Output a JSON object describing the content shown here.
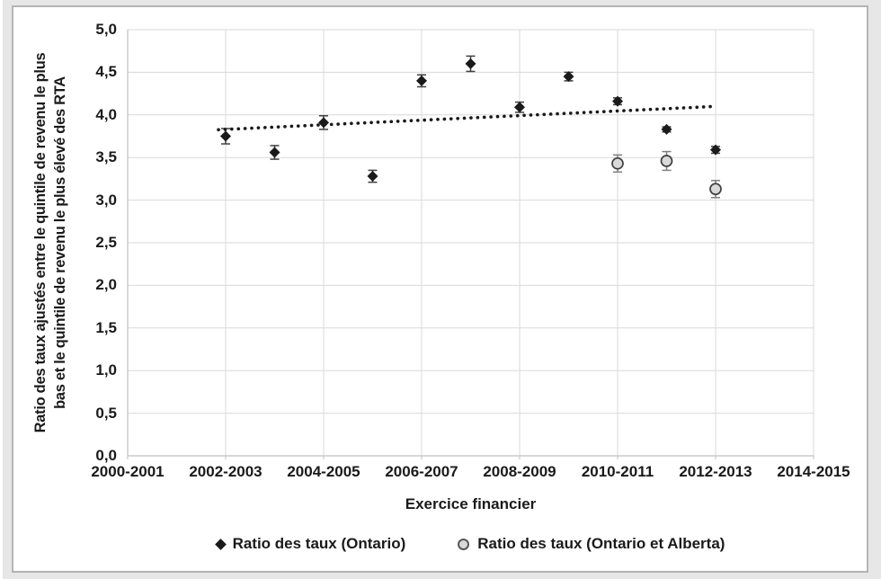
{
  "figure": {
    "background_color": "#e7e7e7",
    "panel_background": "#ffffff",
    "panel_border_color": "#b4b4b4",
    "text_color": "#1a1a1a"
  },
  "chart_data": {
    "type": "scatter",
    "title": "",
    "xlabel": "Exercice financier",
    "ylabel_line1": "Ratio des taux ajustés entre le quintile de revenu le plus",
    "ylabel_line2": "bas et le quintile de revenu le plus élevé des RTA",
    "ylim": [
      0,
      5
    ],
    "grid": true,
    "legend_position": "bottom",
    "colors": {
      "gridline": "#d9d9d9",
      "axis": "#bfbfbf",
      "text": "#1a1a1a"
    },
    "y_ticks": [
      {
        "value": 0.0,
        "label": "0,0"
      },
      {
        "value": 0.5,
        "label": "0,5"
      },
      {
        "value": 1.0,
        "label": "1,0"
      },
      {
        "value": 1.5,
        "label": "1,5"
      },
      {
        "value": 2.0,
        "label": "2,0"
      },
      {
        "value": 2.5,
        "label": "2,5"
      },
      {
        "value": 3.0,
        "label": "3,0"
      },
      {
        "value": 3.5,
        "label": "3,5"
      },
      {
        "value": 4.0,
        "label": "4,0"
      },
      {
        "value": 4.5,
        "label": "4,5"
      },
      {
        "value": 5.0,
        "label": "5,0"
      }
    ],
    "x_ticks": [
      {
        "year_index": 0,
        "label": "2000-2001"
      },
      {
        "year_index": 2,
        "label": "2002-2003"
      },
      {
        "year_index": 4,
        "label": "2004-2005"
      },
      {
        "year_index": 6,
        "label": "2006-2007"
      },
      {
        "year_index": 8,
        "label": "2008-2009"
      },
      {
        "year_index": 10,
        "label": "2010-2011"
      },
      {
        "year_index": 12,
        "label": "2012-2013"
      },
      {
        "year_index": 14,
        "label": "2014-2015"
      }
    ],
    "series": [
      {
        "name": "Ratio des taux (Ontario)",
        "marker": "diamond",
        "color": "#1a1a1a",
        "error_color": "#404040",
        "points": [
          {
            "fiscal_year": "2002-2003",
            "year_index": 2,
            "value": 3.75,
            "error": 0.09
          },
          {
            "fiscal_year": "2003-2004",
            "year_index": 3,
            "value": 3.56,
            "error": 0.08
          },
          {
            "fiscal_year": "2004-2005",
            "year_index": 4,
            "value": 3.91,
            "error": 0.08
          },
          {
            "fiscal_year": "2005-2006",
            "year_index": 5,
            "value": 3.28,
            "error": 0.07
          },
          {
            "fiscal_year": "2006-2007",
            "year_index": 6,
            "value": 4.4,
            "error": 0.07
          },
          {
            "fiscal_year": "2007-2008",
            "year_index": 7,
            "value": 4.6,
            "error": 0.09
          },
          {
            "fiscal_year": "2008-2009",
            "year_index": 8,
            "value": 4.09,
            "error": 0.06
          },
          {
            "fiscal_year": "2009-2010",
            "year_index": 9,
            "value": 4.45,
            "error": 0.05
          },
          {
            "fiscal_year": "2010-2011",
            "year_index": 10,
            "value": 4.16,
            "error": 0.04
          },
          {
            "fiscal_year": "2011-2012",
            "year_index": 11,
            "value": 3.83,
            "error": 0.03
          },
          {
            "fiscal_year": "2012-2013",
            "year_index": 12,
            "value": 3.59,
            "error": 0.04
          }
        ]
      },
      {
        "name": "Ratio des taux (Ontario et Alberta)",
        "marker": "circle",
        "fill": "#d9d9d9",
        "stroke": "#404040",
        "error_color": "#7f7f7f",
        "points": [
          {
            "fiscal_year": "2010-2011",
            "year_index": 10,
            "value": 3.43,
            "error": 0.1
          },
          {
            "fiscal_year": "2011-2012",
            "year_index": 11,
            "value": 3.46,
            "error": 0.11
          },
          {
            "fiscal_year": "2012-2013",
            "year_index": 12,
            "value": 3.13,
            "error": 0.1
          }
        ]
      }
    ],
    "trend": {
      "style": "dotted",
      "color": "#1a1a1a",
      "start_year_index": 2,
      "end_year_index": 12,
      "start_value": 3.83,
      "end_value": 4.1
    },
    "legend": [
      "Ratio des taux (Ontario)",
      "Ratio des taux (Ontario et Alberta)"
    ]
  }
}
